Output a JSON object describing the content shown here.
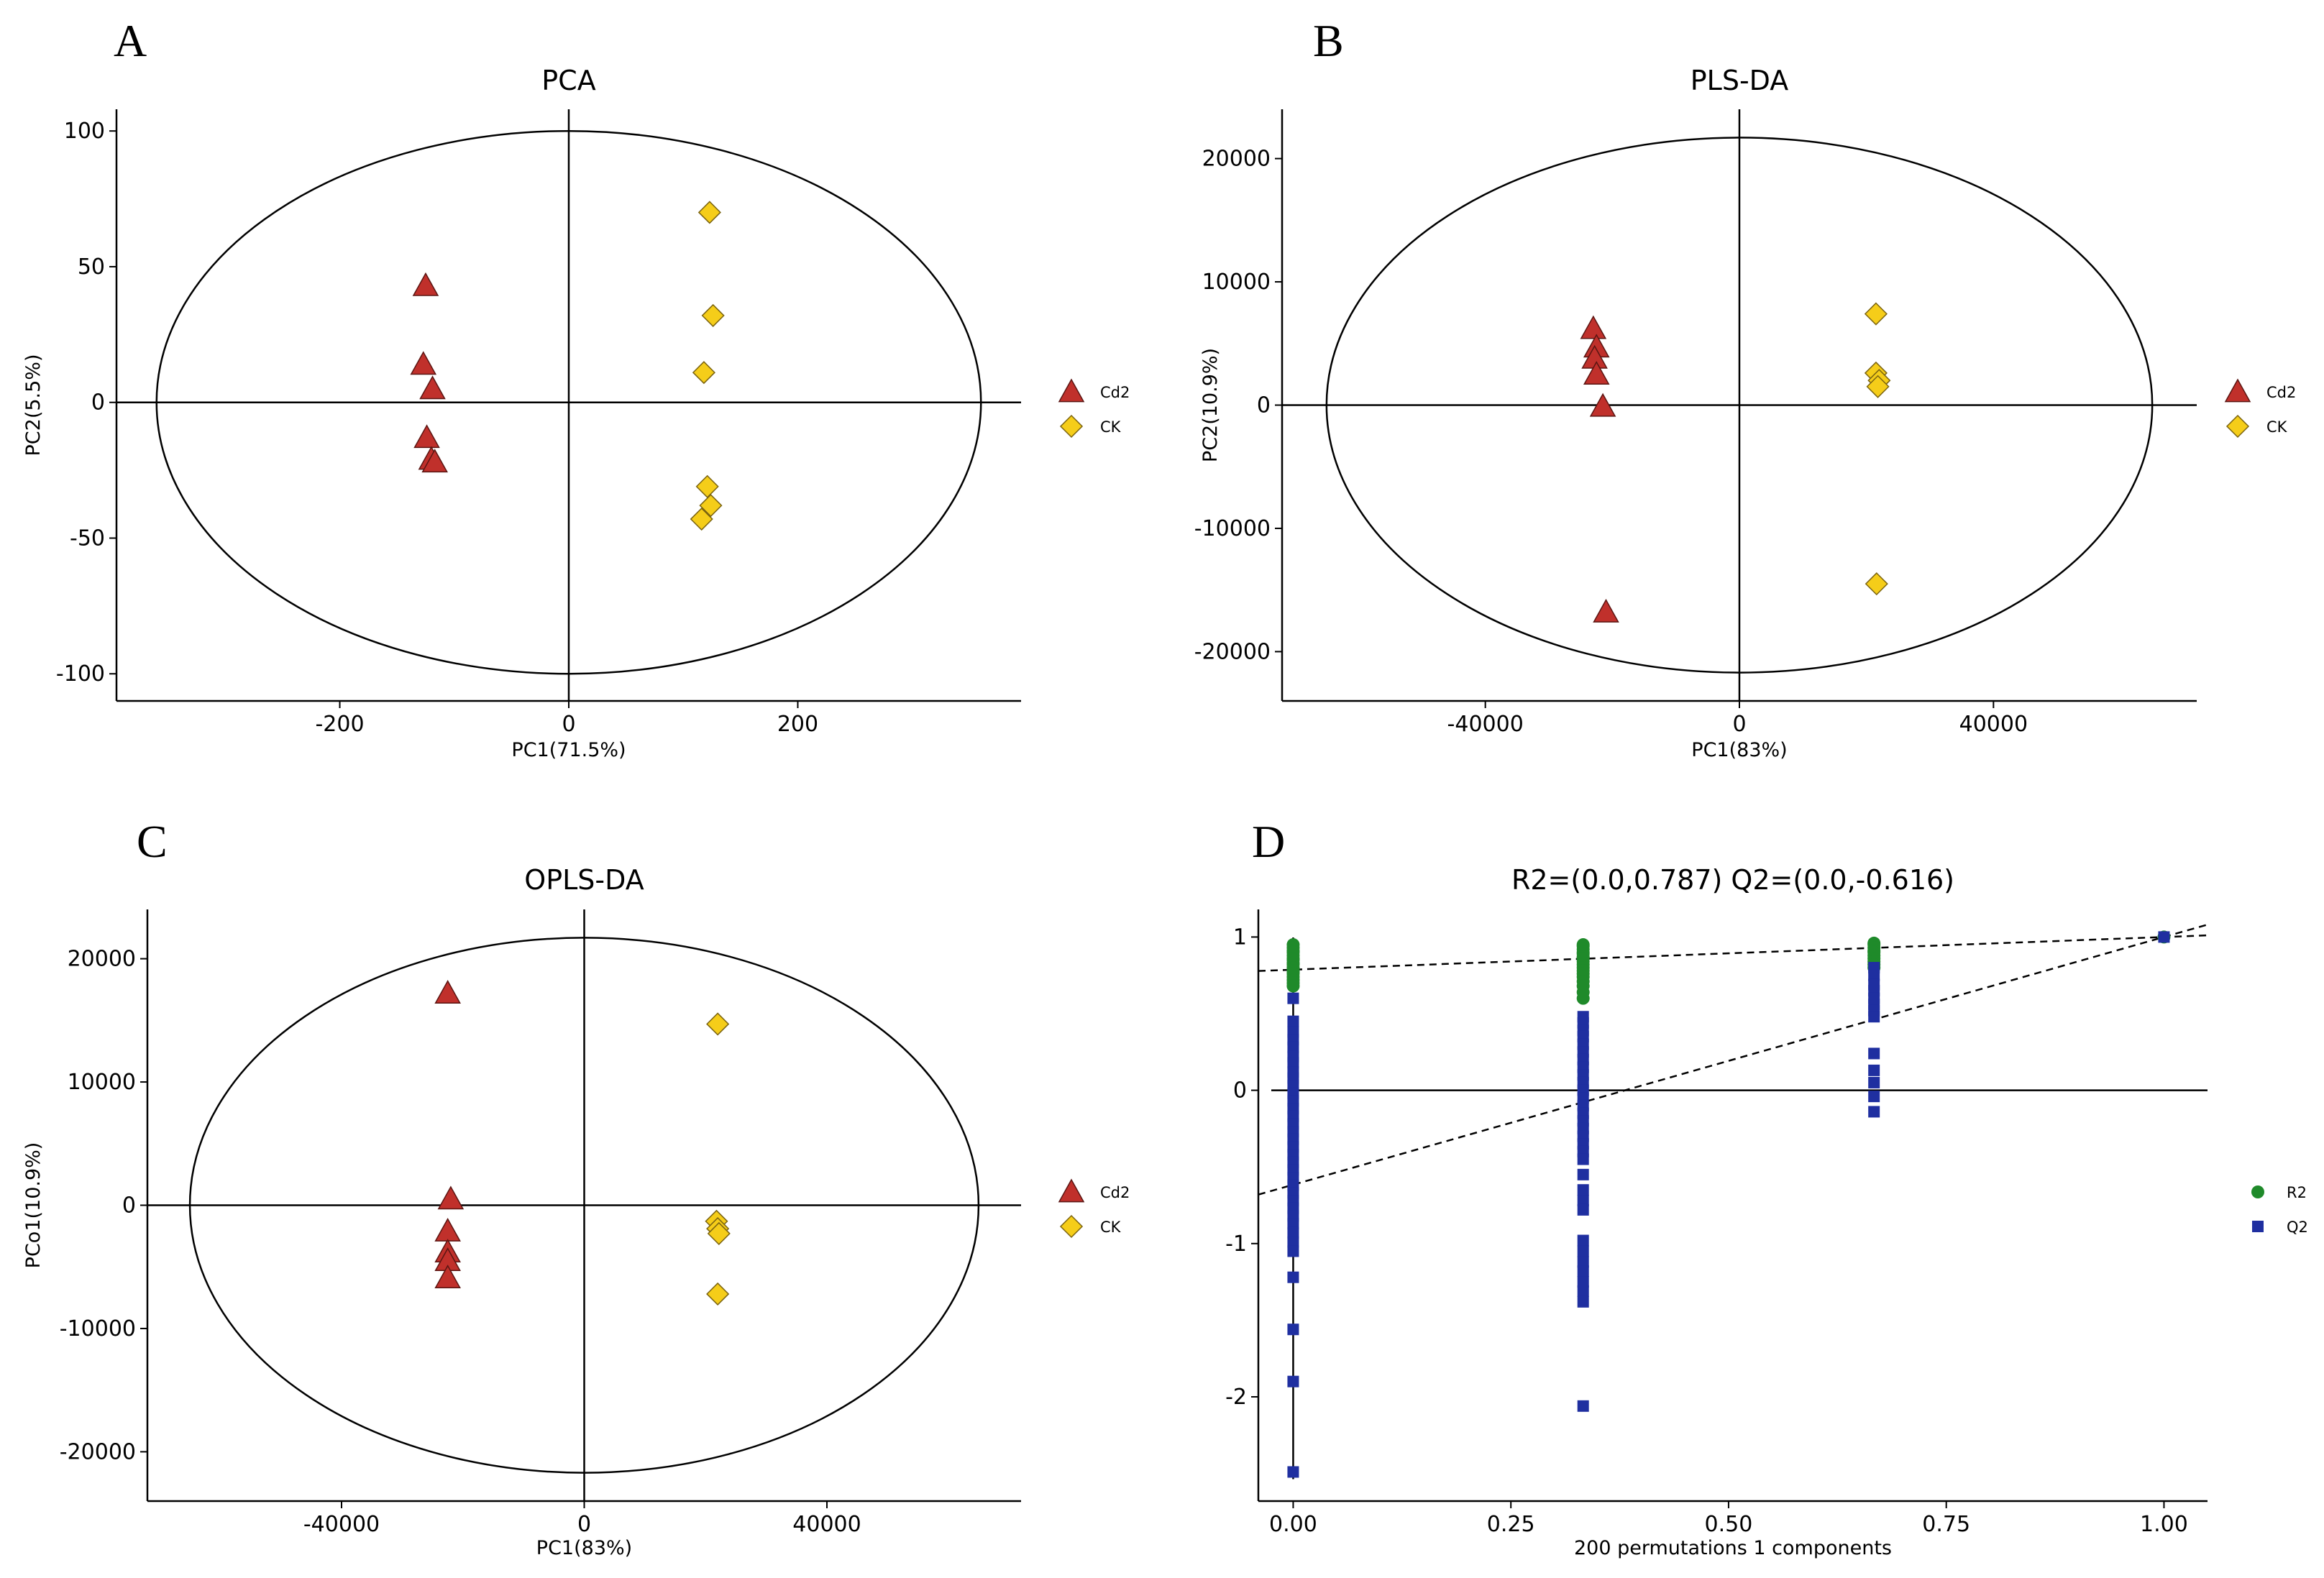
{
  "colors": {
    "cd2": "#c0302b",
    "ck": "#f5cd19",
    "r2": "#1f8a2a",
    "q2": "#1f2fa0"
  },
  "chart_data": [
    {
      "panel": "A",
      "type": "scatter",
      "title": "PCA",
      "xlabel": "PC1(71.5%)",
      "ylabel": "PC2(5.5%)",
      "xlim": [
        -395,
        395
      ],
      "ylim": [
        -110,
        108
      ],
      "xticks": [
        -200,
        0,
        200
      ],
      "yticks": [
        -100,
        -50,
        0,
        50,
        100
      ],
      "ellipse": {
        "rx": 360,
        "ry": 100
      },
      "legend": [
        "Cd2",
        "CK"
      ],
      "series": [
        {
          "name": "Cd2",
          "marker": "triangle",
          "points": [
            [
              -125,
              43
            ],
            [
              -127,
              14
            ],
            [
              -119,
              5
            ],
            [
              -124,
              -13
            ],
            [
              -120,
              -21
            ],
            [
              -117,
              -22
            ]
          ]
        },
        {
          "name": "CK",
          "marker": "diamond",
          "points": [
            [
              123,
              70
            ],
            [
              126,
              32
            ],
            [
              118,
              11
            ],
            [
              121,
              -31
            ],
            [
              124,
              -38
            ],
            [
              116,
              -43
            ]
          ]
        }
      ]
    },
    {
      "panel": "B",
      "type": "scatter",
      "title": "PLS-DA",
      "xlabel": "PC1(83%)",
      "ylabel": "PC2(10.9%)",
      "xlim": [
        -72000,
        72000
      ],
      "ylim": [
        -24000,
        24000
      ],
      "xticks": [
        -40000,
        0,
        40000
      ],
      "yticks": [
        -20000,
        -10000,
        0,
        10000,
        20000
      ],
      "ellipse": {
        "rx": 65000,
        "ry": 21700
      },
      "legend": [
        "Cd2",
        "CK"
      ],
      "series": [
        {
          "name": "Cd2",
          "marker": "triangle",
          "points": [
            [
              -23000,
              6200
            ],
            [
              -22500,
              4700
            ],
            [
              -22800,
              3800
            ],
            [
              -22500,
              2500
            ],
            [
              -21500,
              -100
            ],
            [
              -21000,
              -16800
            ]
          ]
        },
        {
          "name": "CK",
          "marker": "diamond",
          "points": [
            [
              21500,
              7400
            ],
            [
              21500,
              2600
            ],
            [
              22000,
              2000
            ],
            [
              21800,
              1500
            ],
            [
              21600,
              -14500
            ]
          ]
        }
      ]
    },
    {
      "panel": "C",
      "type": "scatter",
      "title": "OPLS-DA",
      "xlabel": "PC1(83%)",
      "ylabel": "PCo1(10.9%)",
      "xlim": [
        -72000,
        72000
      ],
      "ylim": [
        -24000,
        24000
      ],
      "xticks": [
        -40000,
        0,
        40000
      ],
      "yticks": [
        -20000,
        -10000,
        0,
        10000,
        20000
      ],
      "ellipse": {
        "rx": 65000,
        "ry": 21700
      },
      "legend": [
        "Cd2",
        "CK"
      ],
      "series": [
        {
          "name": "Cd2",
          "marker": "triangle",
          "points": [
            [
              -22500,
              17200
            ],
            [
              -22000,
              500
            ],
            [
              -22500,
              -2100
            ],
            [
              -22500,
              -3800
            ],
            [
              -22500,
              -4500
            ],
            [
              -22500,
              -5900
            ]
          ]
        },
        {
          "name": "CK",
          "marker": "diamond",
          "points": [
            [
              22000,
              14700
            ],
            [
              21800,
              -1300
            ],
            [
              22000,
              -1900
            ],
            [
              22200,
              -2300
            ],
            [
              22000,
              -7200
            ]
          ]
        }
      ]
    },
    {
      "panel": "D",
      "type": "scatter",
      "title": "R2=(0.0,0.787)   Q2=(0.0,-0.616)",
      "xlabel": "200 permutations 1 components",
      "ylabel": "",
      "xlim": [
        -0.04,
        1.05
      ],
      "ylim": [
        -2.68,
        1.18
      ],
      "xticks": [
        0.0,
        0.25,
        0.5,
        0.75,
        1.0
      ],
      "xtick_labels": [
        "0.00",
        "0.25",
        "0.50",
        "0.75",
        "1.00"
      ],
      "yticks": [
        -2,
        -1,
        0,
        1
      ],
      "legend": [
        "R2",
        "Q2"
      ],
      "r2_line": {
        "intercept": 0.787,
        "slope": 0.213
      },
      "q2_line": {
        "intercept": -0.616,
        "slope": 1.616
      },
      "series": [
        {
          "name": "R2",
          "marker": "circle",
          "x": [
            0,
            0.333,
            0.667,
            1.0
          ],
          "y": [
            [
              0.95,
              0.93,
              0.91,
              0.9,
              0.88,
              0.86,
              0.85,
              0.83,
              0.82,
              0.8,
              0.79,
              0.78,
              0.77,
              0.76,
              0.74,
              0.72,
              0.7,
              0.68
            ],
            [
              0.95,
              0.94,
              0.92,
              0.9,
              0.89,
              0.87,
              0.86,
              0.84,
              0.82,
              0.8,
              0.78,
              0.76,
              0.74,
              0.71,
              0.68,
              0.64,
              0.6
            ],
            [
              0.96,
              0.95,
              0.93,
              0.91,
              0.9,
              0.88,
              0.86,
              0.84,
              0.82,
              0.8
            ],
            [
              1.0
            ]
          ]
        },
        {
          "name": "Q2",
          "marker": "square",
          "x": [
            0,
            0.333,
            0.667,
            1.0
          ],
          "y": [
            [
              0.6,
              0.45,
              0.38,
              0.33,
              0.28,
              0.22,
              0.18,
              0.12,
              0.08,
              0.03,
              -0.02,
              -0.07,
              -0.12,
              -0.17,
              -0.22,
              -0.27,
              -0.32,
              -0.37,
              -0.42,
              -0.47,
              -0.52,
              -0.57,
              -0.62,
              -0.67,
              -0.72,
              -0.77,
              -0.82,
              -0.87,
              -0.93,
              -0.99,
              -1.05,
              -1.22,
              -1.56,
              -1.9,
              -2.49
            ],
            [
              0.48,
              0.44,
              0.39,
              0.35,
              0.3,
              0.25,
              0.2,
              0.15,
              0.1,
              0.05,
              0.0,
              -0.05,
              -0.1,
              -0.15,
              -0.2,
              -0.25,
              -0.3,
              -0.35,
              -0.4,
              -0.45,
              -0.55,
              -0.65,
              -0.72,
              -0.78,
              -0.98,
              -1.05,
              -1.12,
              -1.18,
              -1.25,
              -1.31,
              -1.38,
              -2.06
            ],
            [
              0.8,
              0.75,
              0.69,
              0.65,
              0.6,
              0.56,
              0.52,
              0.48,
              0.24,
              0.13,
              0.05,
              -0.04,
              -0.14
            ],
            [
              1.0
            ]
          ]
        }
      ]
    }
  ]
}
